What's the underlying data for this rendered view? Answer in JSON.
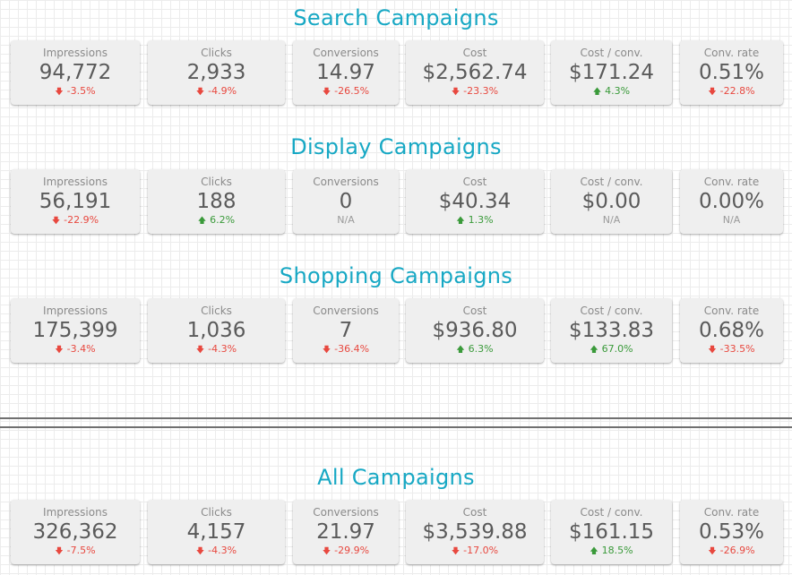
{
  "colors": {
    "title": "#17a8c4",
    "negative": "#e8483f",
    "positive": "#3a9a3a"
  },
  "sections": [
    {
      "title": "Search Campaigns",
      "metrics": [
        {
          "label": "Impressions",
          "value": "94,772",
          "change": "-3.5%",
          "trend": "down"
        },
        {
          "label": "Clicks",
          "value": "2,933",
          "change": "-4.9%",
          "trend": "down"
        },
        {
          "label": "Conversions",
          "value": "14.97",
          "change": "-26.5%",
          "trend": "down"
        },
        {
          "label": "Cost",
          "value": "$2,562.74",
          "change": "-23.3%",
          "trend": "down"
        },
        {
          "label": "Cost / conv.",
          "value": "$171.24",
          "change": "4.3%",
          "trend": "up"
        },
        {
          "label": "Conv. rate",
          "value": "0.51%",
          "change": "-22.8%",
          "trend": "down"
        }
      ]
    },
    {
      "title": "Display Campaigns",
      "metrics": [
        {
          "label": "Impressions",
          "value": "56,191",
          "change": "-22.9%",
          "trend": "down"
        },
        {
          "label": "Clicks",
          "value": "188",
          "change": "6.2%",
          "trend": "up"
        },
        {
          "label": "Conversions",
          "value": "0",
          "change": "N/A",
          "trend": "na"
        },
        {
          "label": "Cost",
          "value": "$40.34",
          "change": "1.3%",
          "trend": "up"
        },
        {
          "label": "Cost / conv.",
          "value": "$0.00",
          "change": "N/A",
          "trend": "na"
        },
        {
          "label": "Conv. rate",
          "value": "0.00%",
          "change": "N/A",
          "trend": "na"
        }
      ]
    },
    {
      "title": "Shopping Campaigns",
      "metrics": [
        {
          "label": "Impressions",
          "value": "175,399",
          "change": "-3.4%",
          "trend": "down"
        },
        {
          "label": "Clicks",
          "value": "1,036",
          "change": "-4.3%",
          "trend": "down"
        },
        {
          "label": "Conversions",
          "value": "7",
          "change": "-36.4%",
          "trend": "down"
        },
        {
          "label": "Cost",
          "value": "$936.80",
          "change": "6.3%",
          "trend": "up"
        },
        {
          "label": "Cost / conv.",
          "value": "$133.83",
          "change": "67.0%",
          "trend": "up"
        },
        {
          "label": "Conv. rate",
          "value": "0.68%",
          "change": "-33.5%",
          "trend": "down"
        }
      ]
    },
    {
      "title": "All Campaigns",
      "metrics": [
        {
          "label": "Impressions",
          "value": "326,362",
          "change": "-7.5%",
          "trend": "down"
        },
        {
          "label": "Clicks",
          "value": "4,157",
          "change": "-4.3%",
          "trend": "down"
        },
        {
          "label": "Conversions",
          "value": "21.97",
          "change": "-29.9%",
          "trend": "down"
        },
        {
          "label": "Cost",
          "value": "$3,539.88",
          "change": "-17.0%",
          "trend": "down"
        },
        {
          "label": "Cost / conv.",
          "value": "$161.15",
          "change": "18.5%",
          "trend": "up"
        },
        {
          "label": "Conv. rate",
          "value": "0.53%",
          "change": "-26.9%",
          "trend": "down"
        }
      ]
    }
  ]
}
